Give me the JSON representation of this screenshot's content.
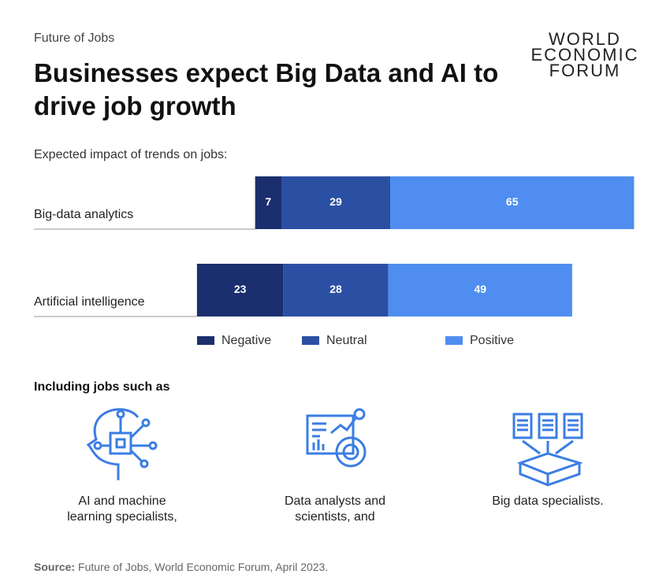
{
  "header": {
    "kicker": "Future of Jobs",
    "title": "Businesses expect Big Data and AI to drive job growth",
    "logo": [
      "WORLD",
      "ECONOMIC",
      "FORUM"
    ]
  },
  "chart_data": {
    "type": "bar",
    "orientation": "horizontal",
    "stacking": "diverging",
    "subtitle": "Expected impact of trends on jobs:",
    "categories": [
      "Big-data analytics",
      "Artificial intelligence"
    ],
    "series": [
      {
        "name": "Negative",
        "color": "#1b2f6e",
        "values": [
          7,
          23
        ]
      },
      {
        "name": "Neutral",
        "color": "#2b50a3",
        "values": [
          29,
          28
        ]
      },
      {
        "name": "Positive",
        "color": "#4f8ef0",
        "values": [
          65,
          49
        ]
      }
    ]
  },
  "jobs": {
    "heading": "Including jobs such as",
    "items": [
      "AI and machine learning specialists,",
      "Data analysts and scientists, and",
      "Big data specialists."
    ]
  },
  "source": {
    "label": "Source:",
    "text": "Future of Jobs, World Economic Forum, April 2023."
  }
}
